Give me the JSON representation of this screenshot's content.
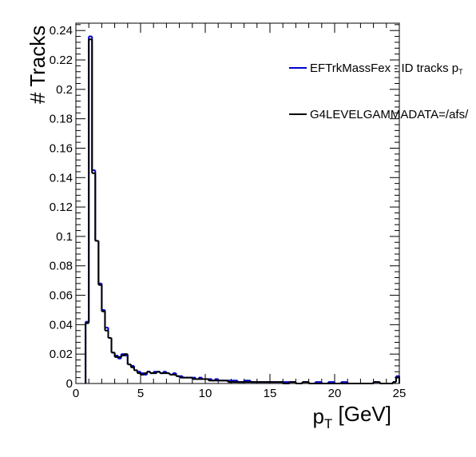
{
  "chart_data": {
    "type": "histogram",
    "title": "",
    "xlabel": "p_T [GeV]",
    "ylabel": "# Tracks",
    "xlim": [
      0,
      25
    ],
    "ylim": [
      0,
      0.245
    ],
    "x_ticks": [
      0,
      5,
      10,
      15,
      20,
      25
    ],
    "y_ticks": [
      0,
      0.02,
      0.04,
      0.06,
      0.08,
      0.1,
      0.12,
      0.14,
      0.16,
      0.18,
      0.2,
      0.22,
      0.24
    ],
    "bin_width": 0.25,
    "grid": false,
    "legend_position": "top-right",
    "series": [
      {
        "name": "EFTrkMassFex - ID tracks p_T",
        "color": "#0000cc",
        "bins_x_low": [
          0.75,
          1.0,
          1.25,
          1.5,
          1.75,
          2.0,
          2.25,
          2.5,
          2.75,
          3.0,
          3.25,
          3.5,
          3.75,
          4.0,
          4.25,
          4.5,
          4.75,
          5.0,
          5.25,
          5.5,
          5.75,
          6.0,
          6.25,
          6.5,
          6.75,
          7.0,
          7.25,
          7.5,
          7.75,
          8.0,
          8.25,
          8.5,
          8.75,
          9.0,
          9.25,
          9.5,
          9.75,
          10.0,
          10.25,
          10.5,
          10.75,
          11.0,
          11.25,
          11.5,
          11.75,
          12.0,
          12.5,
          13.0,
          13.5,
          14.0,
          14.5,
          15.0,
          15.5,
          16.0,
          16.5,
          17.0,
          17.5,
          18.0,
          18.5,
          19.0,
          19.5,
          20.0,
          20.5,
          21.0,
          21.5,
          22.0,
          22.5,
          23.0,
          23.5,
          24.0,
          24.5,
          24.75
        ],
        "values": [
          0.042,
          0.236,
          0.145,
          0.097,
          0.068,
          0.05,
          0.038,
          0.031,
          0.021,
          0.019,
          0.017,
          0.02,
          0.019,
          0.013,
          0.012,
          0.009,
          0.008,
          0.007,
          0.006,
          0.008,
          0.007,
          0.008,
          0.008,
          0.007,
          0.008,
          0.007,
          0.006,
          0.007,
          0.005,
          0.005,
          0.004,
          0.004,
          0.004,
          0.004,
          0.003,
          0.004,
          0.003,
          0.003,
          0.003,
          0.002,
          0.003,
          0.002,
          0.002,
          0.002,
          0.002,
          0.002,
          0.001,
          0.002,
          0.001,
          0.001,
          0.001,
          0.001,
          0.001,
          0.001,
          0.001,
          0.0,
          0.001,
          0.0,
          0.001,
          0.0,
          0.001,
          0.0,
          0.001,
          0.0,
          0.0,
          0.0,
          0.0,
          0.001,
          0.0,
          0.0,
          0.001,
          0.005
        ]
      },
      {
        "name": "G4LEVELGAMMADATA=/afs/",
        "color": "#000000",
        "bins_x_low": [
          0.75,
          1.0,
          1.25,
          1.5,
          1.75,
          2.0,
          2.25,
          2.5,
          2.75,
          3.0,
          3.25,
          3.5,
          3.75,
          4.0,
          4.25,
          4.5,
          4.75,
          5.0,
          5.25,
          5.5,
          5.75,
          6.0,
          6.25,
          6.5,
          6.75,
          7.0,
          7.25,
          7.5,
          7.75,
          8.0,
          8.25,
          8.5,
          8.75,
          9.0,
          9.25,
          9.5,
          9.75,
          10.0,
          10.25,
          10.5,
          10.75,
          11.0,
          11.25,
          11.5,
          11.75,
          12.0,
          12.5,
          13.0,
          13.5,
          14.0,
          14.5,
          15.0,
          15.5,
          16.0,
          16.5,
          17.0,
          17.5,
          18.0,
          18.5,
          19.0,
          19.5,
          20.0,
          20.5,
          21.0,
          21.5,
          22.0,
          22.5,
          23.0,
          23.5,
          24.0,
          24.5,
          24.75
        ],
        "values": [
          0.041,
          0.234,
          0.143,
          0.097,
          0.067,
          0.049,
          0.036,
          0.031,
          0.021,
          0.018,
          0.018,
          0.019,
          0.02,
          0.013,
          0.011,
          0.009,
          0.007,
          0.006,
          0.007,
          0.008,
          0.007,
          0.007,
          0.008,
          0.007,
          0.007,
          0.007,
          0.006,
          0.006,
          0.005,
          0.004,
          0.004,
          0.004,
          0.004,
          0.003,
          0.003,
          0.003,
          0.003,
          0.003,
          0.002,
          0.002,
          0.002,
          0.002,
          0.002,
          0.002,
          0.001,
          0.001,
          0.001,
          0.001,
          0.001,
          0.001,
          0.001,
          0.001,
          0.001,
          0.0,
          0.001,
          0.0,
          0.001,
          0.0,
          0.0,
          0.0,
          0.0,
          0.0,
          0.0,
          0.0,
          0.0,
          0.0,
          0.0,
          0.001,
          0.0,
          0.0,
          0.001,
          0.004
        ]
      }
    ]
  }
}
